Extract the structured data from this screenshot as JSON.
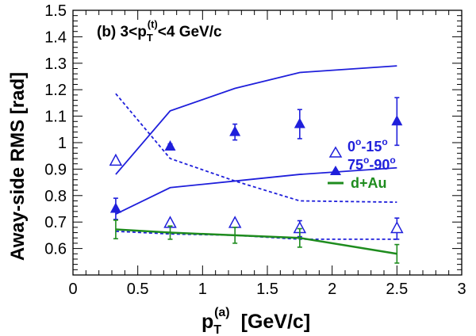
{
  "chart_data": {
    "type": "scatter",
    "panel_label": {
      "prefix": "(b) 3<p",
      "sub": "T",
      "sup": "(t)",
      "suffix": "<4 GeV/c"
    },
    "xlabel": {
      "main": "p",
      "sub": "T",
      "sup": "(a)",
      "units": "[GeV/c]"
    },
    "ylabel": "Away-side RMS [rad]",
    "xlim": [
      0,
      3
    ],
    "ylim": [
      0.5,
      1.5
    ],
    "x_ticks": [
      "0",
      "0.5",
      "1",
      "1.5",
      "2",
      "2.5",
      "3"
    ],
    "y_ticks": [
      "0.6",
      "0.7",
      "0.8",
      "0.9",
      "1",
      "1.1",
      "1.2",
      "1.3",
      "1.4",
      "1.5"
    ],
    "colors": {
      "blue": "#1f1fdb",
      "green": "#1e8c1e",
      "axis": "#000000"
    },
    "series": [
      {
        "name": "0°-15°",
        "name_main": "0",
        "name_deg1": "o",
        "name_mid": "-15",
        "name_deg2": "o",
        "marker": "open-triangle",
        "color": "#1f1fdb",
        "x": [
          0.33,
          0.75,
          1.25,
          1.75,
          2.5
        ],
        "y": [
          0.93,
          0.695,
          0.695,
          0.675,
          0.675
        ],
        "err": [
          0.0,
          0.0,
          0.0,
          0.03,
          0.04
        ]
      },
      {
        "name": "75°-90°",
        "name_main": "75",
        "name_deg1": "o",
        "name_mid": "-90",
        "name_deg2": "o",
        "marker": "filled-triangle",
        "color": "#1f1fdb",
        "x": [
          0.33,
          0.75,
          1.25,
          1.75,
          2.5
        ],
        "y": [
          0.75,
          0.985,
          1.04,
          1.07,
          1.08
        ],
        "err": [
          0.04,
          0.01,
          0.03,
          0.055,
          0.09
        ]
      },
      {
        "name": "d+Au",
        "marker": "line",
        "color": "#1e8c1e",
        "x": [
          0.33,
          0.75,
          1.25,
          1.75,
          2.5
        ],
        "y": [
          0.672,
          0.66,
          0.65,
          0.64,
          0.58
        ],
        "err": [
          0.035,
          0.025,
          0.03,
          0.035,
          0.035
        ]
      }
    ],
    "bands": [
      {
        "style": "solid",
        "color": "#1f1fdb",
        "x": [
          0.33,
          0.75,
          1.25,
          1.75,
          2.5
        ],
        "y": [
          0.88,
          1.12,
          1.205,
          1.265,
          1.29
        ]
      },
      {
        "style": "solid",
        "color": "#1f1fdb",
        "x": [
          0.33,
          0.75,
          1.25,
          1.75,
          2.5
        ],
        "y": [
          0.73,
          0.83,
          0.855,
          0.88,
          0.905
        ]
      },
      {
        "style": "dashed",
        "color": "#1f1fdb",
        "x": [
          0.33,
          0.75,
          1.25,
          1.75,
          2.5
        ],
        "y": [
          1.185,
          0.94,
          0.855,
          0.78,
          0.775
        ]
      },
      {
        "style": "dashed",
        "color": "#1f1fdb",
        "x": [
          0.33,
          0.75,
          1.25,
          1.75,
          2.5
        ],
        "y": [
          0.665,
          0.655,
          0.65,
          0.635,
          0.635
        ]
      }
    ]
  }
}
